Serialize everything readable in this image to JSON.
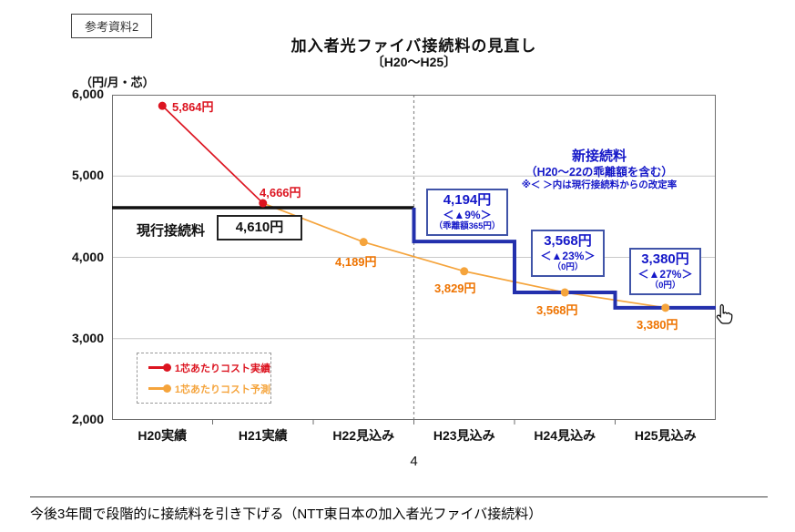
{
  "page": {
    "ref_label": "参考資料2",
    "page_number": "4",
    "caption": "今後3年間で段階的に接続料を引き下げる（NTT東日本の加入者光ファイバ接続料）"
  },
  "chart_data": {
    "type": "line",
    "title": "加入者光ファイバ接続料の見直し",
    "subtitle": "〔H20～H25〕",
    "unit_label": "（円/月・芯）",
    "categories": [
      "H20実績",
      "H21実績",
      "H22見込み",
      "H23見込み",
      "H24見込み",
      "H25見込み"
    ],
    "ylim": [
      2000,
      6000
    ],
    "yticks": {
      "values": [
        6000,
        5000,
        4000,
        3000,
        2000
      ],
      "labels": [
        "6,000",
        "5,000",
        "4,000",
        "3,000",
        "2,000"
      ]
    },
    "grid": "horizontal",
    "divider_boundary": 3,
    "series": [
      {
        "name": "1芯あたりコスト実績",
        "color": "#dc1420",
        "label_color": "#dc1420",
        "x_idx": [
          0,
          1
        ],
        "values": [
          5864,
          4666
        ],
        "point_labels": [
          "5,864円",
          "4,666円"
        ]
      },
      {
        "name": "1芯あたりコスト予測",
        "color": "#f5a43c",
        "label_color": "#ee7300",
        "x_idx": [
          1,
          2,
          3,
          4,
          5
        ],
        "values": [
          4666,
          4189,
          3829,
          3568,
          3380
        ],
        "skip_first_marker": true,
        "extend_right_value": 3365,
        "point_labels": [
          "4,189円",
          "3,829円",
          "3,568円",
          "3,380円"
        ]
      }
    ],
    "current_fee_line": {
      "label": "現行接続料",
      "value": 4610,
      "value_label": "4,610円",
      "color": "#111111",
      "from_boundary": 0,
      "to_boundary": 3
    },
    "new_fee_step": {
      "color": "#2330ad",
      "start_from_value": 4610,
      "segments": [
        {
          "boundary": 3,
          "value": 4194
        },
        {
          "boundary": 4,
          "value": 3568
        },
        {
          "boundary": 5,
          "value": 3380
        }
      ],
      "end_boundary": 6
    },
    "annotations": {
      "header": {
        "title": "新接続料",
        "sub": "（H20～22の乖離額を含む）",
        "note": "※＜ ＞内は現行接続料からの改定率"
      },
      "boxes": [
        {
          "value": "4,194円",
          "rate": "＜▲9%＞",
          "note": "（乖離額365円）"
        },
        {
          "value": "3,568円",
          "rate": "＜▲23%＞",
          "note": "（0円）"
        },
        {
          "value": "3,380円",
          "rate": "＜▲27%＞",
          "note": "（0円）"
        }
      ]
    },
    "legend": [
      {
        "label": "1芯あたりコスト実績",
        "color": "#dc1420"
      },
      {
        "label": "1芯あたりコスト予測",
        "color": "#f5a43c"
      }
    ],
    "colors": {
      "accent_blue": "#1518c8",
      "box_border_blue": "#4054a8"
    },
    "legend_position": "lower-left"
  }
}
